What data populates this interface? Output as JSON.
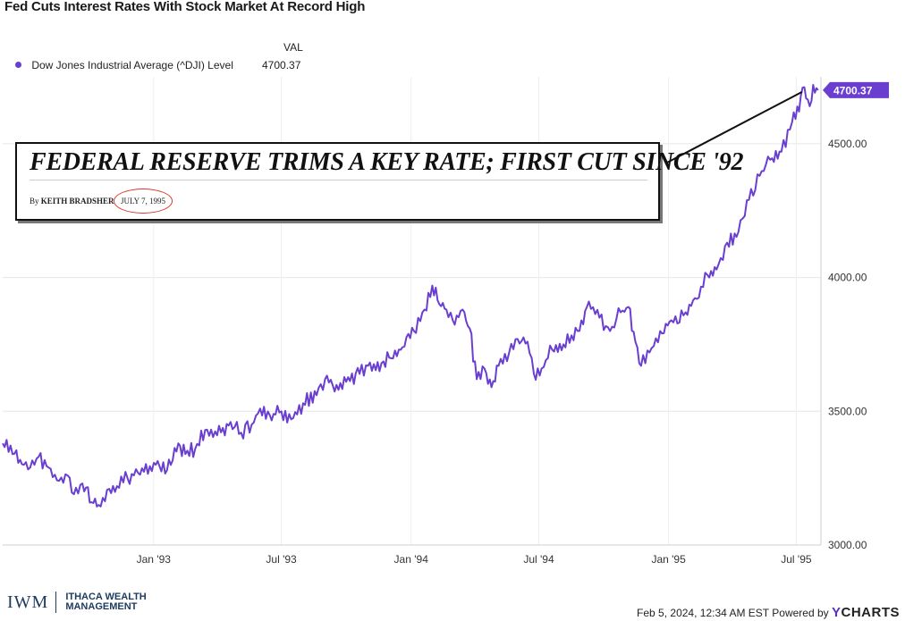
{
  "chart_data": {
    "type": "line",
    "title": "Fed Cuts Interest Rates With Stock Market At Record High",
    "value_header": "VAL",
    "series": [
      {
        "name": "Dow Jones Industrial Average (^DJI) Level",
        "color": "#6a3fd0",
        "last_value": "4700.37",
        "points": [
          [
            "1992-06-01",
            3380
          ],
          [
            "1992-06-15",
            3340
          ],
          [
            "1992-07-01",
            3300
          ],
          [
            "1992-07-10",
            3290
          ],
          [
            "1992-07-22",
            3330
          ],
          [
            "1992-08-05",
            3290
          ],
          [
            "1992-08-20",
            3240
          ],
          [
            "1992-09-01",
            3260
          ],
          [
            "1992-09-10",
            3190
          ],
          [
            "1992-09-22",
            3230
          ],
          [
            "1992-10-05",
            3160
          ],
          [
            "1992-10-15",
            3150
          ],
          [
            "1992-10-30",
            3210
          ],
          [
            "1992-11-10",
            3220
          ],
          [
            "1992-11-25",
            3250
          ],
          [
            "1992-12-10",
            3270
          ],
          [
            "1993-01-04",
            3300
          ],
          [
            "1993-01-20",
            3280
          ],
          [
            "1993-02-05",
            3380
          ],
          [
            "1993-02-15",
            3340
          ],
          [
            "1993-03-01",
            3360
          ],
          [
            "1993-03-15",
            3430
          ],
          [
            "1993-04-01",
            3410
          ],
          [
            "1993-04-20",
            3460
          ],
          [
            "1993-05-05",
            3420
          ],
          [
            "1993-05-20",
            3450
          ],
          [
            "1993-06-01",
            3510
          ],
          [
            "1993-06-20",
            3490
          ],
          [
            "1993-07-01",
            3500
          ],
          [
            "1993-07-15",
            3470
          ],
          [
            "1993-08-01",
            3530
          ],
          [
            "1993-08-20",
            3560
          ],
          [
            "1993-09-01",
            3620
          ],
          [
            "1993-09-20",
            3580
          ],
          [
            "1993-10-01",
            3610
          ],
          [
            "1993-10-20",
            3640
          ],
          [
            "1993-11-01",
            3670
          ],
          [
            "1993-11-20",
            3680
          ],
          [
            "1993-12-01",
            3700
          ],
          [
            "1993-12-20",
            3740
          ],
          [
            "1994-01-05",
            3800
          ],
          [
            "1994-01-20",
            3880
          ],
          [
            "1994-01-31",
            3970
          ],
          [
            "1994-02-10",
            3900
          ],
          [
            "1994-02-20",
            3880
          ],
          [
            "1994-03-01",
            3840
          ],
          [
            "1994-03-15",
            3880
          ],
          [
            "1994-03-25",
            3810
          ],
          [
            "1994-04-04",
            3620
          ],
          [
            "1994-04-15",
            3660
          ],
          [
            "1994-04-25",
            3590
          ],
          [
            "1994-05-05",
            3670
          ],
          [
            "1994-05-20",
            3720
          ],
          [
            "1994-06-01",
            3770
          ],
          [
            "1994-06-15",
            3760
          ],
          [
            "1994-06-24",
            3640
          ],
          [
            "1994-07-05",
            3660
          ],
          [
            "1994-07-20",
            3730
          ],
          [
            "1994-08-05",
            3750
          ],
          [
            "1994-08-25",
            3800
          ],
          [
            "1994-09-10",
            3910
          ],
          [
            "1994-09-25",
            3850
          ],
          [
            "1994-10-10",
            3800
          ],
          [
            "1994-10-25",
            3870
          ],
          [
            "1994-11-05",
            3890
          ],
          [
            "1994-11-15",
            3760
          ],
          [
            "1994-11-23",
            3670
          ],
          [
            "1994-12-05",
            3720
          ],
          [
            "1994-12-20",
            3800
          ],
          [
            "1995-01-05",
            3840
          ],
          [
            "1995-01-25",
            3870
          ],
          [
            "1995-02-10",
            3920
          ],
          [
            "1995-02-25",
            4010
          ],
          [
            "1995-03-10",
            4030
          ],
          [
            "1995-03-25",
            4130
          ],
          [
            "1995-04-10",
            4170
          ],
          [
            "1995-04-25",
            4290
          ],
          [
            "1995-05-10",
            4380
          ],
          [
            "1995-05-25",
            4440
          ],
          [
            "1995-06-10",
            4470
          ],
          [
            "1995-06-25",
            4580
          ],
          [
            "1995-07-05",
            4620
          ],
          [
            "1995-07-10",
            4710
          ],
          [
            "1995-07-20",
            4640
          ],
          [
            "1995-07-25",
            4720
          ],
          [
            "1995-08-01",
            4700.37
          ]
        ]
      }
    ],
    "x_ticks": [
      [
        "1993-01-01",
        "Jan '93"
      ],
      [
        "1993-07-01",
        "Jul '93"
      ],
      [
        "1994-01-01",
        "Jan '94"
      ],
      [
        "1994-07-01",
        "Jul '94"
      ],
      [
        "1995-01-01",
        "Jan '95"
      ],
      [
        "1995-07-01",
        "Jul '95"
      ]
    ],
    "y_ticks": [
      "3000.00",
      "3500.00",
      "4000.00",
      "4500.00"
    ],
    "ylim": [
      3000,
      4750
    ],
    "xlim": [
      "1992-06-01",
      "1995-08-05"
    ],
    "grid": true,
    "legend_position": "top-left"
  },
  "annotation": {
    "headline": "FEDERAL RESERVE TRIMS A KEY RATE; FIRST CUT SINCE '92",
    "byline_prefix": "By",
    "author": "KEITH BRADSHER",
    "date": "JULY 7, 1995"
  },
  "footer": {
    "logo_mark": "IWM",
    "logo_line1": "ITHACA WEALTH",
    "logo_line2": "MANAGEMENT",
    "timestamp": "Feb 5, 2024, 12:34 AM EST",
    "powered_by": "Powered by",
    "ycharts_y": "Y",
    "ycharts_rest": "CHARTS"
  }
}
